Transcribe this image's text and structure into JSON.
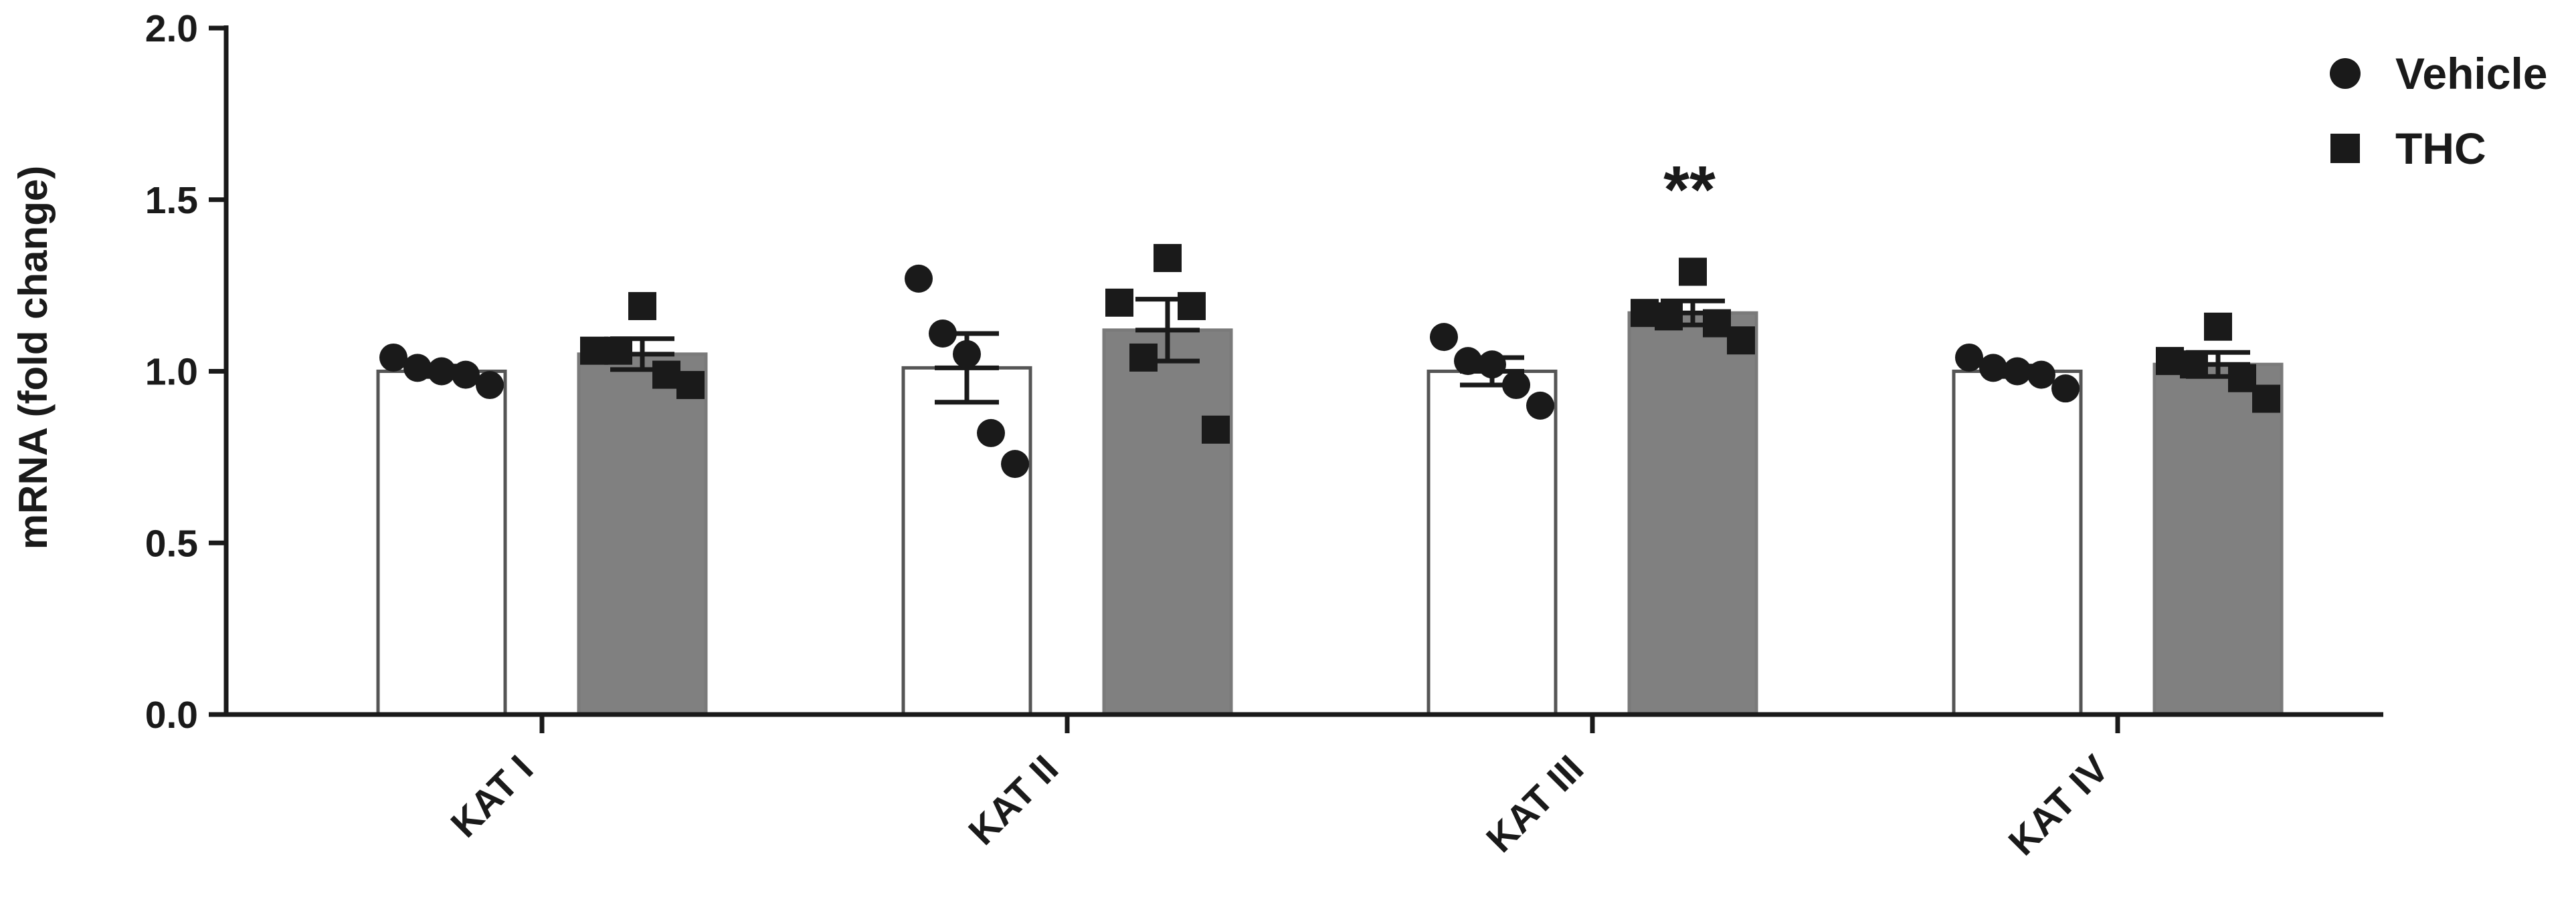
{
  "chart_data": {
    "type": "bar",
    "categories": [
      "KAT I",
      "KAT II",
      "KAT III",
      "KAT IV"
    ],
    "ylabel": "mRNA (fold change)",
    "xlabel": "",
    "title": "",
    "ylim": [
      0,
      2.0
    ],
    "yticks": [
      "0.0",
      "0.5",
      "1.0",
      "1.5",
      "2.0"
    ],
    "legend_position": "top-right",
    "grid": false,
    "series": [
      {
        "name": "Vehicle",
        "marker": "circle",
        "bar_color": "#ffffff",
        "means": [
          1.0,
          1.01,
          1.0,
          1.0
        ],
        "sem": [
          0.015,
          0.1,
          0.04,
          0.015
        ],
        "points": [
          [
            1.04,
            1.01,
            1.0,
            0.99,
            0.96
          ],
          [
            1.27,
            1.11,
            1.05,
            0.82,
            0.73
          ],
          [
            1.1,
            1.03,
            1.02,
            0.96,
            0.9
          ],
          [
            1.04,
            1.01,
            1.0,
            0.99,
            0.95
          ]
        ]
      },
      {
        "name": "THC",
        "marker": "square",
        "bar_color": "#808080",
        "means": [
          1.05,
          1.12,
          1.17,
          1.02
        ],
        "sem": [
          0.045,
          0.09,
          0.035,
          0.035
        ],
        "points": [
          [
            1.06,
            1.06,
            1.19,
            0.99,
            0.96
          ],
          [
            1.2,
            1.04,
            1.33,
            1.19,
            0.83
          ],
          [
            1.17,
            1.16,
            1.29,
            1.14,
            1.09
          ],
          [
            1.03,
            1.02,
            1.13,
            0.98,
            0.92
          ]
        ]
      }
    ],
    "annotations": [
      {
        "category": "KAT III",
        "series": "THC",
        "text": "**"
      }
    ]
  }
}
